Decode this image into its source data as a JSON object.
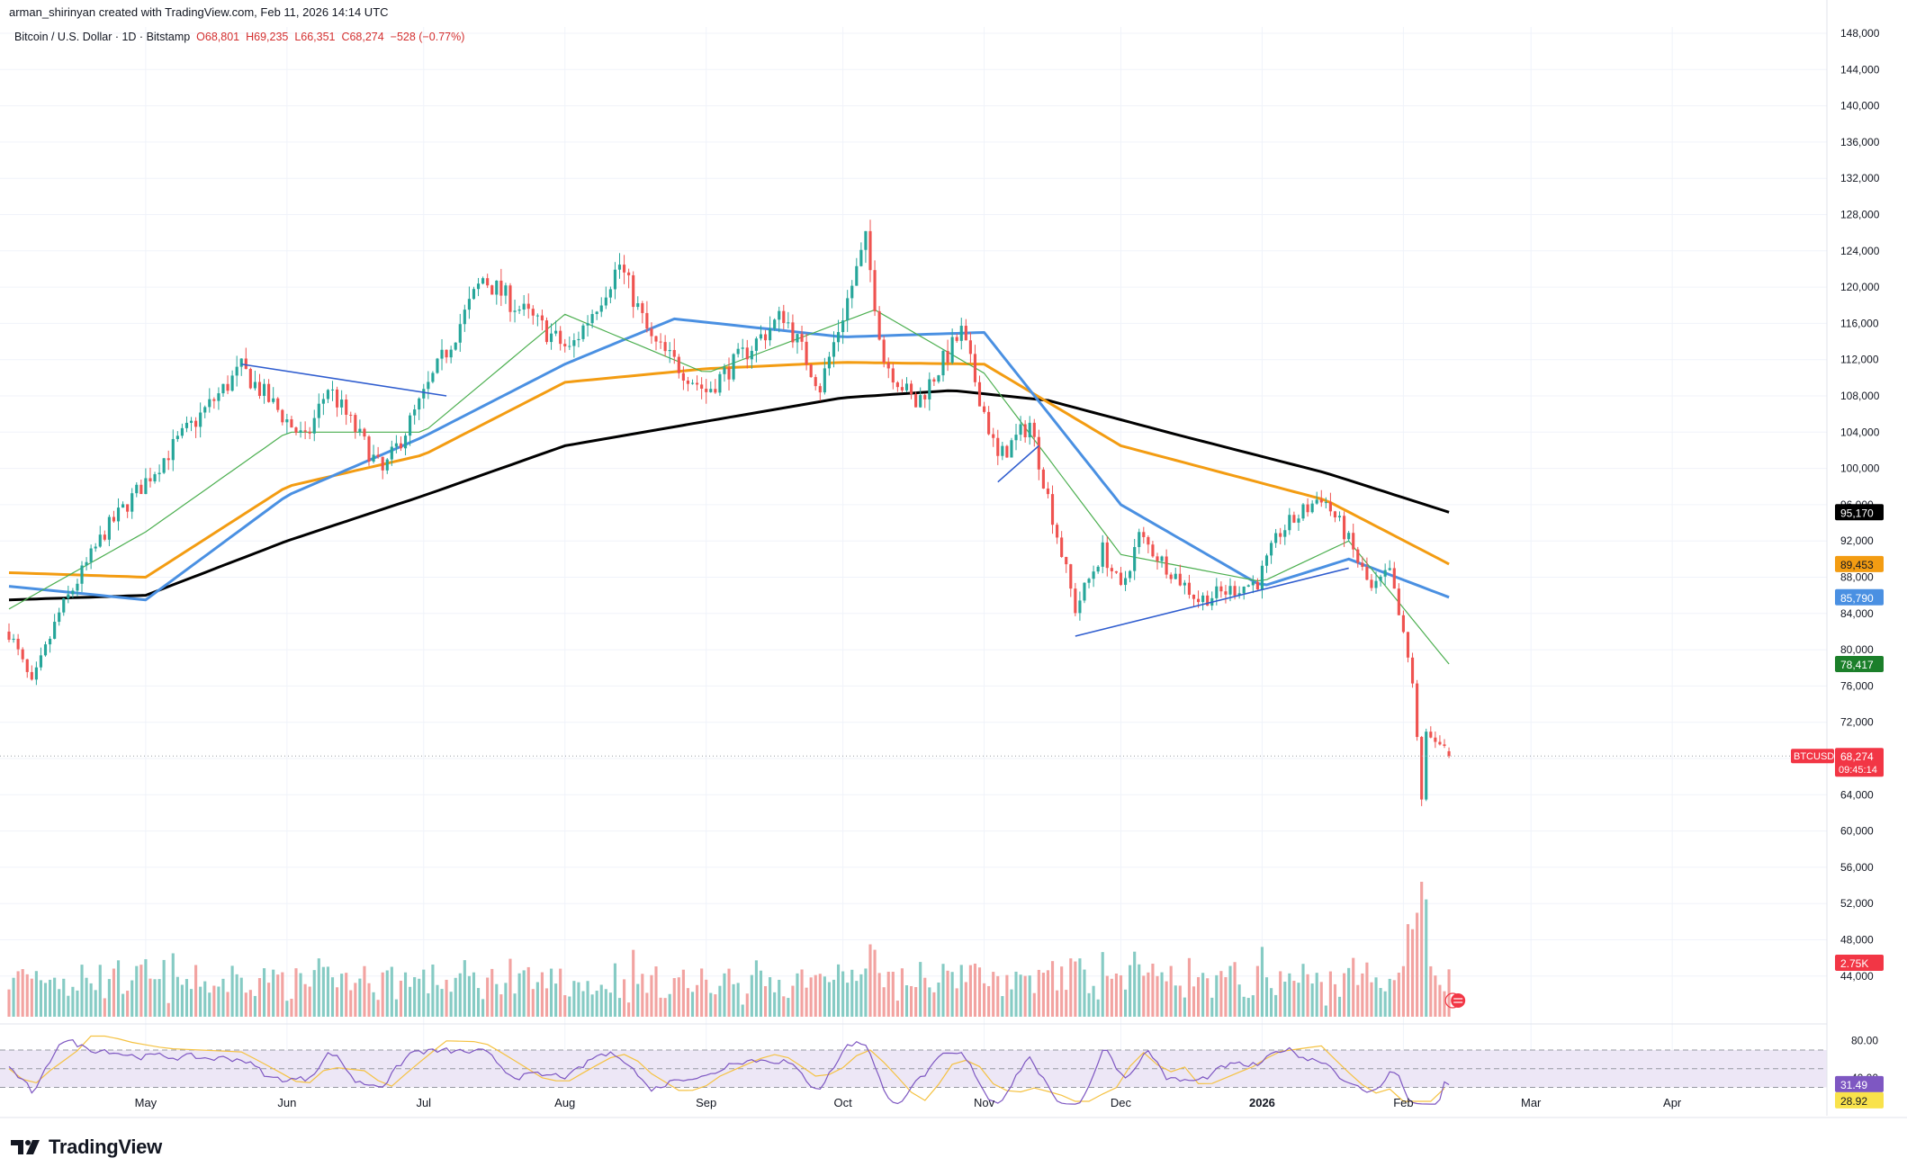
{
  "header": {
    "credit": "arman_shirinyan created with TradingView.com, Feb 11, 2026 14:14 UTC",
    "symbol": "Bitcoin / U.S. Dollar · 1D · Bitstamp",
    "open": "O68,801",
    "high": "H69,235",
    "low": "L66,351",
    "close": "C68,274",
    "change": "−528 (−0.77%)"
  },
  "footer": {
    "brand": "TradingView",
    "logo_icon": "tradingview-logo-icon"
  },
  "colors": {
    "up": "#26a69a",
    "down": "#ef5350",
    "up_vol": "#86cbc4",
    "down_vol": "#f2a3a1",
    "sma20": "#4caf50",
    "sma50": "#4a90e2",
    "sma100": "#f39c12",
    "sma200": "#000000",
    "trendline": "#2f5dcf",
    "rsi": "#7e57c2",
    "rsi_ma": "#f5c242",
    "rsi_band": "#ede7f6"
  },
  "chart_data": {
    "type": "candlestick",
    "title": "Bitcoin / U.S. Dollar · 1D · Bitstamp",
    "y_ticks": [
      "148,000",
      "144,000",
      "140,000",
      "136,000",
      "132,000",
      "128,000",
      "124,000",
      "120,000",
      "116,000",
      "112,000",
      "108,000",
      "104,000",
      "100,000",
      "96,000",
      "92,000",
      "88,000",
      "84,000",
      "80,000",
      "76,000",
      "72,000",
      "68,000",
      "64,000",
      "60,000",
      "56,000",
      "52,000",
      "48,000",
      "44,000"
    ],
    "x_ticks": [
      "May",
      "Jun",
      "Jul",
      "Aug",
      "Sep",
      "Oct",
      "Nov",
      "Dec",
      "2026",
      "Feb",
      "Mar",
      "Apr"
    ],
    "ylim": [
      40000,
      150000
    ],
    "price_path": [
      [
        "2025-04-01",
        82000
      ],
      [
        "2025-04-06",
        76000
      ],
      [
        "2025-04-12",
        84000
      ],
      [
        "2025-04-22",
        93000
      ],
      [
        "2025-05-08",
        103000
      ],
      [
        "2025-05-22",
        111000
      ],
      [
        "2025-06-05",
        103000
      ],
      [
        "2025-06-10",
        109000
      ],
      [
        "2025-06-22",
        99500
      ],
      [
        "2025-06-30",
        107000
      ],
      [
        "2025-07-10",
        117000
      ],
      [
        "2025-07-14",
        121000
      ],
      [
        "2025-08-02",
        113000
      ],
      [
        "2025-08-13",
        122500
      ],
      [
        "2025-08-20",
        114000
      ],
      [
        "2025-09-01",
        108500
      ],
      [
        "2025-09-18",
        117000
      ],
      [
        "2025-09-26",
        109000
      ],
      [
        "2025-10-06",
        125000
      ],
      [
        "2025-10-10",
        112000
      ],
      [
        "2025-10-17",
        107000
      ],
      [
        "2025-10-27",
        115000
      ],
      [
        "2025-11-04",
        101000
      ],
      [
        "2025-11-11",
        105000
      ],
      [
        "2025-11-21",
        84500
      ],
      [
        "2025-11-27",
        91000
      ],
      [
        "2025-12-01",
        86500
      ],
      [
        "2025-12-05",
        92500
      ],
      [
        "2025-12-18",
        85500
      ],
      [
        "2025-12-31",
        87500
      ],
      [
        "2026-01-05",
        93000
      ],
      [
        "2026-01-14",
        97000
      ],
      [
        "2026-01-19",
        93000
      ],
      [
        "2026-01-25",
        86500
      ],
      [
        "2026-01-29",
        88500
      ],
      [
        "2026-02-03",
        76500
      ],
      [
        "2026-02-05",
        63000
      ],
      [
        "2026-02-06",
        70500
      ],
      [
        "2026-02-08",
        70000
      ],
      [
        "2026-02-11",
        68274
      ]
    ],
    "moving_averages": [
      {
        "label": "95,170",
        "value": 95170,
        "color": "#000000",
        "path": [
          [
            "2025-04-01",
            85500
          ],
          [
            "2025-05-01",
            86000
          ],
          [
            "2025-06-01",
            92000
          ],
          [
            "2025-07-01",
            97000
          ],
          [
            "2025-08-01",
            102500
          ],
          [
            "2025-09-01",
            105200
          ],
          [
            "2025-10-01",
            107800
          ],
          [
            "2025-10-25",
            108600
          ],
          [
            "2025-11-15",
            107500
          ],
          [
            "2025-12-15",
            103500
          ],
          [
            "2026-01-15",
            99500
          ],
          [
            "2026-02-11",
            95170
          ]
        ]
      },
      {
        "label": "89,453",
        "value": 89453,
        "color": "#f39c12",
        "path": [
          [
            "2025-04-01",
            88500
          ],
          [
            "2025-05-01",
            88000
          ],
          [
            "2025-06-01",
            98000
          ],
          [
            "2025-07-01",
            101500
          ],
          [
            "2025-08-01",
            109500
          ],
          [
            "2025-09-01",
            111000
          ],
          [
            "2025-10-01",
            111700
          ],
          [
            "2025-11-01",
            111500
          ],
          [
            "2025-12-01",
            102500
          ],
          [
            "2026-01-15",
            96500
          ],
          [
            "2026-02-11",
            89453
          ]
        ]
      },
      {
        "label": "85,790",
        "value": 85790,
        "color": "#4a90e2",
        "path": [
          [
            "2025-04-01",
            87000
          ],
          [
            "2025-05-01",
            85500
          ],
          [
            "2025-06-01",
            97000
          ],
          [
            "2025-07-01",
            103500
          ],
          [
            "2025-08-01",
            111500
          ],
          [
            "2025-08-25",
            116500
          ],
          [
            "2025-10-01",
            114500
          ],
          [
            "2025-11-01",
            115000
          ],
          [
            "2025-12-01",
            96000
          ],
          [
            "2026-01-01",
            87000
          ],
          [
            "2026-01-20",
            90000
          ],
          [
            "2026-02-11",
            85790
          ]
        ]
      },
      {
        "label": "78,417",
        "value": 78417,
        "color": "#4caf50",
        "path": [
          [
            "2025-04-01",
            84500
          ],
          [
            "2025-05-01",
            93000
          ],
          [
            "2025-06-01",
            104000
          ],
          [
            "2025-07-01",
            104000
          ],
          [
            "2025-08-01",
            117000
          ],
          [
            "2025-09-01",
            110500
          ],
          [
            "2025-10-08",
            117500
          ],
          [
            "2025-11-01",
            110500
          ],
          [
            "2025-12-01",
            90500
          ],
          [
            "2026-01-01",
            87500
          ],
          [
            "2026-01-20",
            92000
          ],
          [
            "2026-02-11",
            78417
          ]
        ]
      }
    ],
    "trendlines": [
      [
        [
          "2025-05-22",
          111500
        ],
        [
          "2025-07-06",
          108000
        ]
      ],
      [
        [
          "2025-11-04",
          98500
        ],
        [
          "2025-11-13",
          102500
        ]
      ],
      [
        [
          "2025-11-21",
          81500
        ],
        [
          "2026-01-20",
          89000
        ]
      ]
    ],
    "last_price": {
      "symbol": "BTCUSD",
      "label": "68,274",
      "countdown": "09:45:14",
      "value": 68274
    },
    "volume": {
      "last_label": "2.75K"
    },
    "rsi": {
      "y_labels": [
        "80.00",
        "40.00"
      ],
      "value_label": "31.49",
      "ma_label": "28.92",
      "value": 31.49,
      "ma": 28.92
    },
    "grid": true
  }
}
